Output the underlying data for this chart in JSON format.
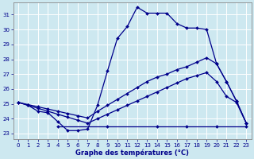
{
  "title": "Graphe des températures (°C)",
  "background_color": "#cde8f0",
  "grid_color": "#ffffff",
  "line_color": "#00008b",
  "xlim": [
    -0.5,
    23.5
  ],
  "ylim": [
    22.6,
    31.8
  ],
  "yticks": [
    23,
    24,
    25,
    26,
    27,
    28,
    29,
    30,
    31
  ],
  "xticks": [
    0,
    1,
    2,
    3,
    4,
    5,
    6,
    7,
    8,
    9,
    10,
    11,
    12,
    13,
    14,
    15,
    16,
    17,
    18,
    19,
    20,
    21,
    22,
    23
  ],
  "series1_x": [
    0,
    1,
    2,
    3,
    4,
    5,
    6,
    7,
    8,
    9,
    10,
    11,
    12,
    13,
    14,
    15,
    16,
    17,
    18,
    19,
    20,
    21,
    22,
    23
  ],
  "series1_y": [
    25.1,
    24.9,
    24.5,
    24.4,
    23.8,
    23.2,
    23.2,
    23.3,
    24.9,
    27.2,
    29.4,
    30.2,
    31.5,
    31.1,
    31.1,
    31.1,
    30.4,
    30.1,
    30.1,
    30.0,
    27.7,
    26.5,
    25.2,
    23.7
  ],
  "series2_x": [
    0,
    1,
    2,
    3,
    4,
    5,
    6,
    7,
    8,
    9,
    10,
    11,
    12,
    13,
    14,
    15,
    16,
    17,
    18,
    19,
    20,
    21,
    22,
    23
  ],
  "series2_y": [
    25.1,
    24.95,
    24.8,
    24.65,
    24.5,
    24.35,
    24.2,
    24.05,
    24.5,
    24.9,
    25.3,
    25.7,
    26.1,
    26.5,
    26.8,
    27.0,
    27.3,
    27.5,
    27.8,
    28.1,
    27.7,
    26.5,
    25.2,
    23.7
  ],
  "series3_x": [
    0,
    1,
    2,
    3,
    4,
    5,
    6,
    7,
    8,
    9,
    10,
    11,
    12,
    13,
    14,
    15,
    16,
    17,
    18,
    19,
    20,
    21,
    22,
    23
  ],
  "series3_y": [
    25.1,
    24.9,
    24.7,
    24.5,
    24.3,
    24.1,
    23.9,
    23.7,
    24.0,
    24.3,
    24.6,
    24.9,
    25.2,
    25.5,
    25.8,
    26.1,
    26.4,
    26.7,
    26.9,
    27.1,
    26.5,
    25.5,
    25.1,
    23.7
  ],
  "series4_x": [
    4,
    9,
    14,
    17,
    20,
    23
  ],
  "series4_y": [
    23.5,
    23.5,
    23.5,
    23.5,
    23.5,
    23.5
  ]
}
